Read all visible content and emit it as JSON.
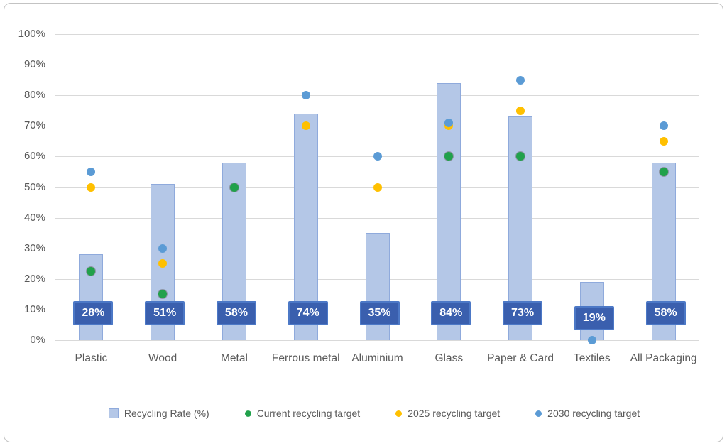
{
  "chart_data": {
    "type": "bar",
    "categories": [
      "Plastic",
      "Wood",
      "Metal",
      "Ferrous metal",
      "Aluminium",
      "Glass",
      "Paper & Card",
      "Textiles",
      "All Packaging"
    ],
    "bar_series_name": "Recycling Rate (%)",
    "bar_values": [
      28,
      51,
      58,
      74,
      35,
      84,
      73,
      19,
      58
    ],
    "bar_labels": [
      "28%",
      "51%",
      "58%",
      "74%",
      "35%",
      "84%",
      "73%",
      "19%",
      "58%"
    ],
    "series": [
      {
        "name": "Current recycling target",
        "marker": "circle",
        "values": [
          22.5,
          15,
          50,
          null,
          null,
          60,
          60,
          null,
          55
        ]
      },
      {
        "name": "2025 recycling target",
        "marker": "circle",
        "values": [
          50,
          25,
          null,
          70,
          50,
          70,
          75,
          null,
          65
        ]
      },
      {
        "name": "2030 recycling target",
        "marker": "circle",
        "values": [
          55,
          30,
          null,
          80,
          60,
          71,
          85,
          0,
          70
        ]
      }
    ],
    "title": "",
    "xlabel": "",
    "ylabel": "",
    "ylim": [
      0,
      100
    ],
    "yticks": [
      "0%",
      "10%",
      "20%",
      "30%",
      "40%",
      "50%",
      "60%",
      "70%",
      "80%",
      "90%",
      "100%"
    ],
    "grid": true,
    "legend_position": "bottom"
  },
  "legend": {
    "items": [
      {
        "label": "Recycling Rate (%)",
        "shape": "square",
        "color": "#B4C7E7"
      },
      {
        "label": "Current recycling target",
        "shape": "dot",
        "color": "#21A14B"
      },
      {
        "label": "2025 recycling target",
        "shape": "dot",
        "color": "#FFC000"
      },
      {
        "label": "2030 recycling target",
        "shape": "dot",
        "color": "#5B9BD5"
      }
    ]
  },
  "colors": {
    "bar_fill": "#B4C7E7",
    "bar_border": "#8FAADC",
    "data_label_bg": "#3A5FAE",
    "data_label_border": "#4C78C6",
    "current_target": "#21A14B",
    "target_2025": "#FFC000",
    "target_2030": "#5B9BD5",
    "gridline": "#D9D9D9",
    "axis_text": "#595959",
    "frame_border": "#C3C3C3"
  }
}
